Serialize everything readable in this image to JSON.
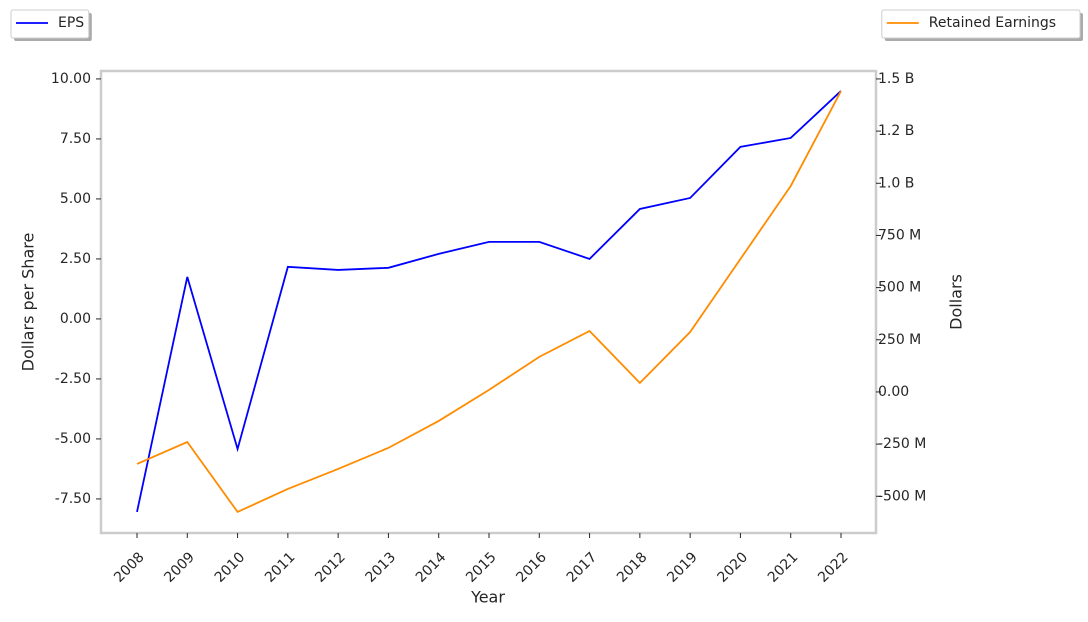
{
  "chart_data": {
    "type": "line",
    "x_label": "Year",
    "y_label": "Dollars per Share",
    "y2_label": "Dollars",
    "categories": [
      "2008",
      "2009",
      "2010",
      "2011",
      "2012",
      "2013",
      "2014",
      "2015",
      "2016",
      "2017",
      "2018",
      "2019",
      "2020",
      "2021",
      "2022"
    ],
    "series": [
      {
        "name": "EPS",
        "color": "#0000ff",
        "legend": "upper left",
        "values": [
          -8.04,
          1.75,
          -5.42,
          2.17,
          2.04,
          2.13,
          2.71,
          3.21,
          3.21,
          2.5,
          4.58,
          5.04,
          7.17,
          7.54,
          9.5
        ]
      },
      {
        "name": "Retained Earnings",
        "color": "#ff8c00",
        "axis": "y2",
        "legend": "upper right",
        "values": [
          -345000000,
          -240000000,
          -575000000,
          -465000000,
          -369000000,
          -268000000,
          -139000000,
          10000000,
          168000000,
          292000000,
          43000000,
          287000000,
          637000000,
          987000000,
          1442000000
        ]
      }
    ],
    "ylim": [
      -8.92,
      10.33
    ],
    "yticks": [
      {
        "value": 10,
        "label": "10.00"
      },
      {
        "value": 7.5,
        "label": "7.50"
      },
      {
        "value": 5,
        "label": "5.00"
      },
      {
        "value": 2.5,
        "label": "2.50"
      },
      {
        "value": 0,
        "label": "0.00"
      },
      {
        "value": -2.5,
        "label": "-2.50"
      },
      {
        "value": -5,
        "label": "-5.00"
      },
      {
        "value": -7.5,
        "label": "-7.50"
      }
    ],
    "y2lim": [
      -676000000,
      1538000000
    ],
    "y2ticks": [
      {
        "value": 1500000000,
        "label": "1.5 B"
      },
      {
        "value": 1250000000,
        "label": "1.2 B"
      },
      {
        "value": 1000000000,
        "label": "1.0 B"
      },
      {
        "value": 750000000,
        "label": "750 M"
      },
      {
        "value": 500000000,
        "label": "500 M"
      },
      {
        "value": 250000000,
        "label": "250 M"
      },
      {
        "value": 0,
        "label": "0.00"
      },
      {
        "value": -250000000,
        "label": "-250 M"
      },
      {
        "value": -500000000,
        "label": "-500 M"
      }
    ],
    "grid": false
  }
}
